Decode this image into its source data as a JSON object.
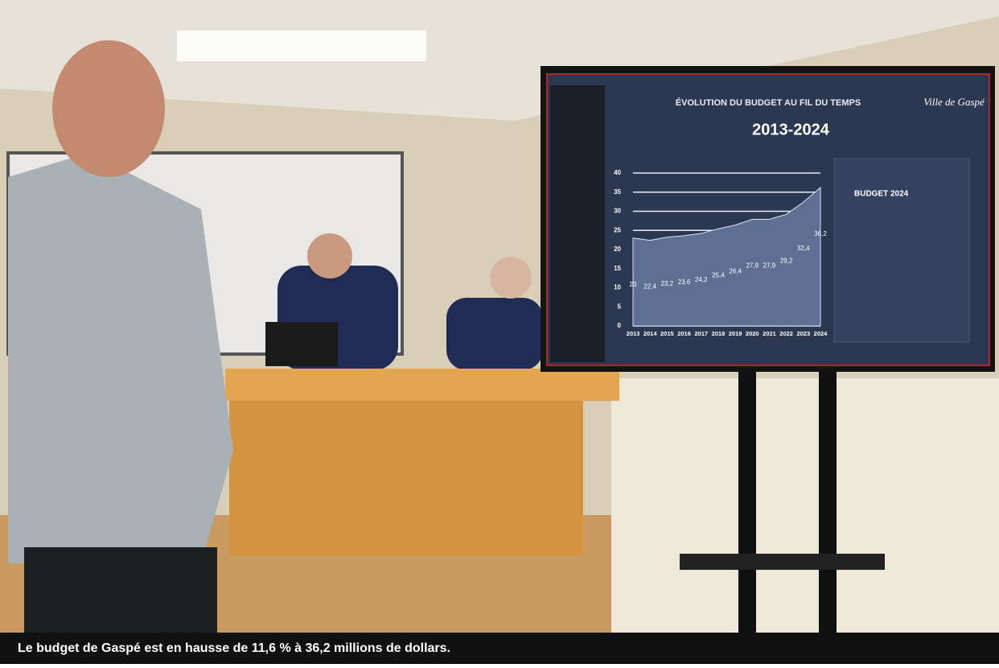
{
  "caption": "Le budget de Gaspé est en hausse de 11,6 % à 36,2 millions de dollars.",
  "screen": {
    "logo": "Ville de Gaspé",
    "panel_title": "BUDGET 2024"
  },
  "chart_data": {
    "type": "area",
    "title": "ÉVOLUTION DU BUDGET AU FIL DU TEMPS",
    "subtitle": "2013-2024",
    "categories": [
      "2013",
      "2014",
      "2015",
      "2016",
      "2017",
      "2018",
      "2019",
      "2020",
      "2021",
      "2022",
      "2023",
      "2024"
    ],
    "values": [
      23,
      22.4,
      23.2,
      23.6,
      24.2,
      25.4,
      26.4,
      27.9,
      27.9,
      29.2,
      32.4,
      36.2
    ],
    "value_labels": [
      "23",
      "22,4",
      "23,2",
      "23,6",
      "24,2",
      "25,4",
      "26,4",
      "27,9",
      "27,9",
      "29,2",
      "32,4",
      "36,2"
    ],
    "color": "#5f6f93",
    "ylim": [
      0,
      40
    ],
    "yticks": [
      0,
      5,
      10,
      15,
      20,
      25,
      30,
      35,
      40
    ],
    "grid": true
  }
}
